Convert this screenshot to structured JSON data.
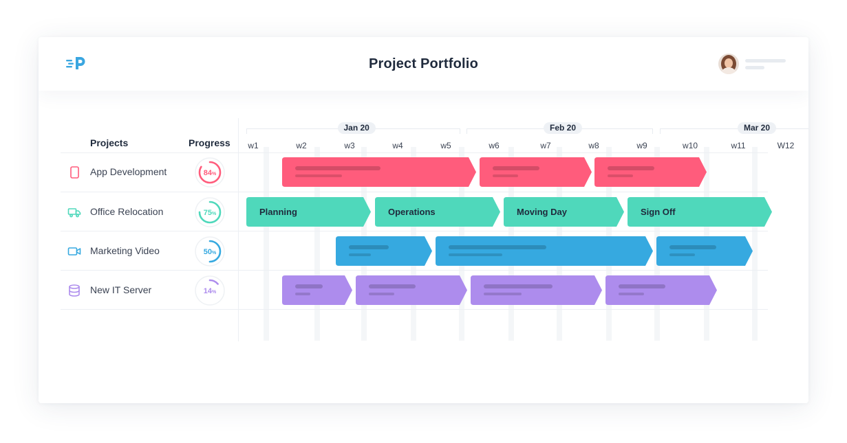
{
  "header": {
    "title": "Project Portfolio",
    "logo_icon": "p-logo-icon",
    "brand_color": "#3aa6e0"
  },
  "columns": {
    "projects": "Projects",
    "progress": "Progress"
  },
  "timeline": {
    "months": [
      "Jan 20",
      "Feb 20",
      "Mar 20"
    ],
    "weeks": [
      "w1",
      "w2",
      "w3",
      "w4",
      "w5",
      "w6",
      "w7",
      "w8",
      "w9",
      "w10",
      "w11",
      "W12"
    ]
  },
  "projects": [
    {
      "name": "App Development",
      "icon": "phone-icon",
      "progress": 84,
      "color": "#ff5c7c",
      "tasks": [
        {
          "label": ""
        },
        {
          "label": ""
        },
        {
          "label": ""
        }
      ]
    },
    {
      "name": "Office Relocation",
      "icon": "truck-icon",
      "progress": 75,
      "color": "#4fd8bb",
      "tasks": [
        {
          "label": "Planning"
        },
        {
          "label": "Operations"
        },
        {
          "label": "Moving Day"
        },
        {
          "label": "Sign Off"
        }
      ]
    },
    {
      "name": "Marketing Video",
      "icon": "video-camera-icon",
      "progress": 50,
      "color": "#36a9e0",
      "tasks": [
        {
          "label": ""
        },
        {
          "label": ""
        },
        {
          "label": ""
        }
      ]
    },
    {
      "name": "New IT Server",
      "icon": "database-icon",
      "progress": 14,
      "color": "#ad8ced",
      "tasks": [
        {
          "label": ""
        },
        {
          "label": ""
        },
        {
          "label": ""
        },
        {
          "label": ""
        }
      ]
    }
  ]
}
